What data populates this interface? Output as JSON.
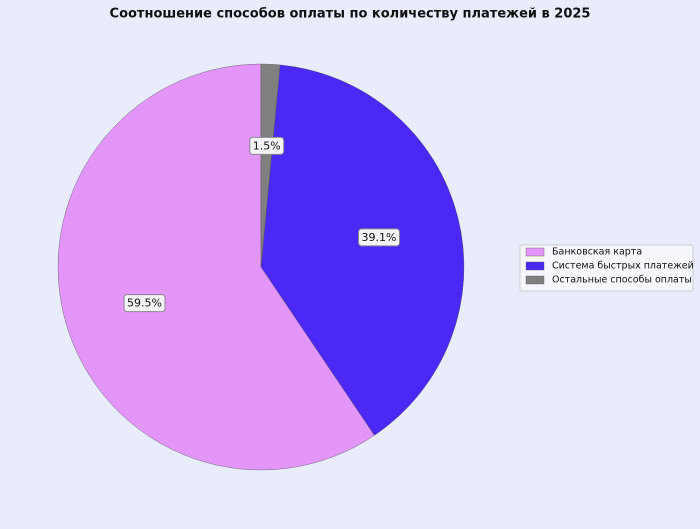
{
  "chart_data": {
    "type": "pie",
    "title": "Соотношение способов оплаты по количеству платежей в 2025",
    "categories": [
      "Банковская карта",
      "Система быстрых платежей",
      "Остальные способы оплаты"
    ],
    "values": [
      59.5,
      39.1,
      1.5
    ],
    "value_labels": [
      "59.5%",
      "39.1%",
      "1.5%"
    ],
    "colors": [
      "#e495fa",
      "#4b28f5",
      "#808080"
    ],
    "legend": "right"
  }
}
